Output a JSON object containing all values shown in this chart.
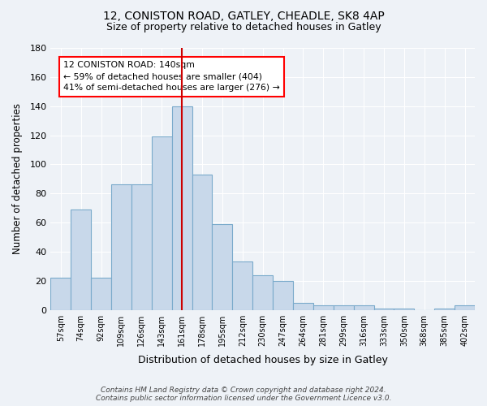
{
  "title1": "12, CONISTON ROAD, GATLEY, CHEADLE, SK8 4AP",
  "title2": "Size of property relative to detached houses in Gatley",
  "xlabel": "Distribution of detached houses by size in Gatley",
  "ylabel": "Number of detached properties",
  "bar_labels": [
    "57sqm",
    "74sqm",
    "92sqm",
    "109sqm",
    "126sqm",
    "143sqm",
    "161sqm",
    "178sqm",
    "195sqm",
    "212sqm",
    "230sqm",
    "247sqm",
    "264sqm",
    "281sqm",
    "299sqm",
    "316sqm",
    "333sqm",
    "350sqm",
    "368sqm",
    "385sqm",
    "402sqm"
  ],
  "bar_values": [
    22,
    69,
    22,
    86,
    86,
    119,
    140,
    93,
    59,
    33,
    24,
    20,
    5,
    3,
    3,
    3,
    1,
    1,
    0,
    1,
    3
  ],
  "bar_color": "#c8d8ea",
  "bar_edge_color": "#7aaacb",
  "vline_color": "#cc0000",
  "annotation_text": "12 CONISTON ROAD: 140sqm\n← 59% of detached houses are smaller (404)\n41% of semi-detached houses are larger (276) →",
  "ylim": [
    0,
    180
  ],
  "yticks": [
    0,
    20,
    40,
    60,
    80,
    100,
    120,
    140,
    160,
    180
  ],
  "footer": "Contains HM Land Registry data © Crown copyright and database right 2024.\nContains public sector information licensed under the Government Licence v3.0.",
  "bg_color": "#eef2f7",
  "grid_color": "#ffffff"
}
